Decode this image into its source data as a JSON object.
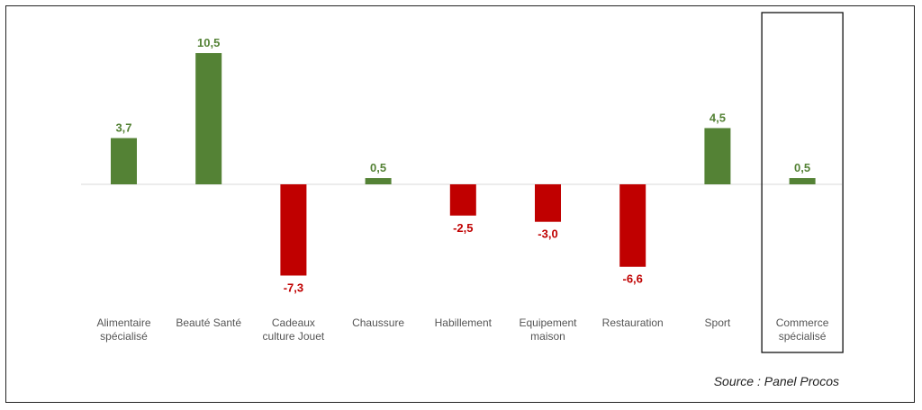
{
  "chart_data": {
    "type": "bar",
    "categories": [
      [
        "Alimentaire",
        "spécialisé"
      ],
      [
        "Beauté Santé"
      ],
      [
        "Cadeaux",
        "culture Jouet"
      ],
      [
        "Chaussure"
      ],
      [
        "Habillement"
      ],
      [
        "Equipement",
        "maison"
      ],
      [
        "Restauration"
      ],
      [
        "Sport"
      ],
      [
        "Commerce",
        "spécialisé"
      ]
    ],
    "values": [
      3.7,
      10.5,
      -7.3,
      0.5,
      -2.5,
      -3.0,
      -6.6,
      4.5,
      0.5
    ],
    "value_labels": [
      "3,7",
      "10,5",
      "-7,3",
      "0,5",
      "-2,5",
      "-3,0",
      "-6,6",
      "4,5",
      "0,5"
    ],
    "highlighted_category_index": 8,
    "colors": {
      "positive": "#548235",
      "negative": "#c00000",
      "axis": "#d9d9d9",
      "category_text": "#555555"
    },
    "grid": false,
    "legend": "none"
  },
  "source": "Source : Panel Procos"
}
